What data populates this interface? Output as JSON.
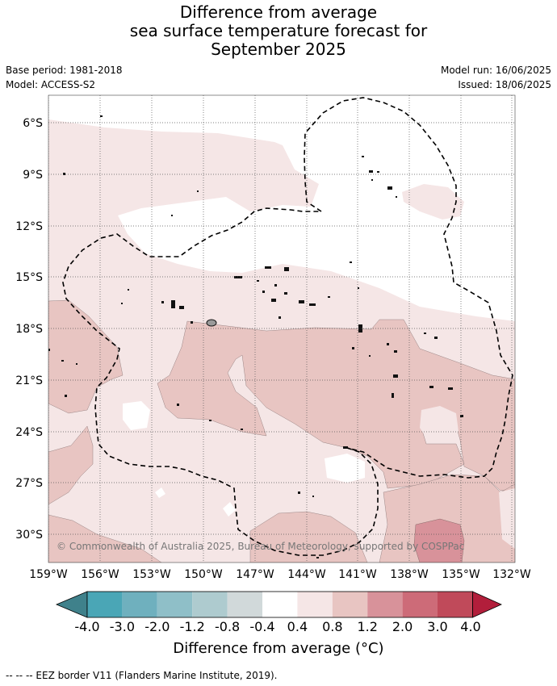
{
  "title": {
    "line1": "Difference from average",
    "line2": "sea surface temperature forecast for",
    "line3": "September 2025"
  },
  "meta": {
    "base_period": "Base period: 1981-2018",
    "model": "Model: ACCESS-S2",
    "model_run": "Model run: 16/06/2025",
    "issued": "Issued: 18/06/2025"
  },
  "map": {
    "lat_labels": [
      "6°S",
      "9°S",
      "12°S",
      "15°S",
      "18°S",
      "21°S",
      "24°S",
      "27°S",
      "30°S"
    ],
    "lon_labels": [
      "159°W",
      "156°W",
      "153°W",
      "150°W",
      "147°W",
      "144°W",
      "141°W",
      "138°W",
      "135°W",
      "132°W"
    ],
    "copyright": "© Commonwealth of Australia 2025, Bureau of Meteorology, supported by COSPPac"
  },
  "colorbar": {
    "tick_labels": [
      "-4.0",
      "-3.0",
      "-2.0",
      "-1.2",
      "-0.8",
      "-0.4",
      "0.4",
      "0.8",
      "1.2",
      "2.0",
      "3.0",
      "4.0"
    ],
    "colors": [
      "#4aa6b6",
      "#6fb0be",
      "#8fbfc8",
      "#aecbcf",
      "#d1d9da",
      "#ffffff",
      "#f5e6e6",
      "#e8c5c2",
      "#d8929a",
      "#cd6b78",
      "#c04a5a"
    ],
    "extend_low_color": "#3f818b",
    "extend_high_color": "#b21e3b",
    "label": "Difference from average (°C)"
  },
  "legend": {
    "eez": "--  --  -- EEZ border V11 (Flanders Marine Institute, 2019)."
  }
}
